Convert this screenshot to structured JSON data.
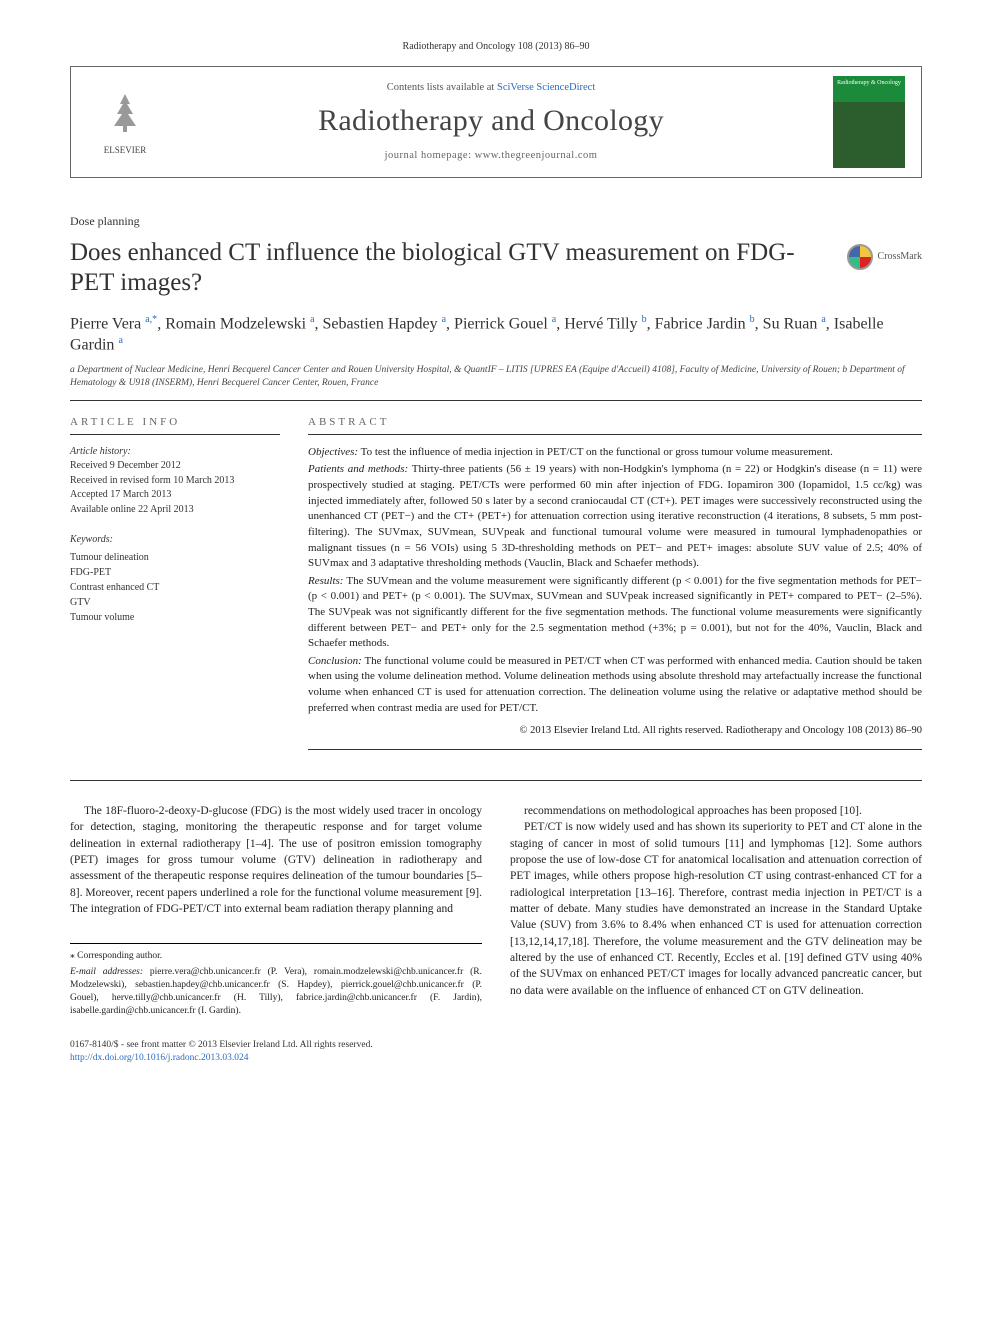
{
  "header": {
    "citation": "Radiotherapy and Oncology 108 (2013) 86–90"
  },
  "banner": {
    "contents_line_pre": "Contents lists available at ",
    "contents_link": "SciVerse ScienceDirect",
    "journal_name": "Radiotherapy and Oncology",
    "homepage_pre": "journal homepage: ",
    "homepage_url": "www.thegreenjournal.com",
    "elsevier_label": "ELSEVIER",
    "cover_label": "Radiotherapy & Oncology"
  },
  "article": {
    "type": "Dose planning",
    "title": "Does enhanced CT influence the biological GTV measurement on FDG-PET images?",
    "crossmark": "CrossMark",
    "authors_html": "Pierre Vera <sup>a,*</sup>, Romain Modzelewski <sup>a</sup>, Sebastien Hapdey <sup>a</sup>, Pierrick Gouel <sup>a</sup>, Hervé Tilly <sup>b</sup>, Fabrice Jardin <sup>b</sup>, Su Ruan <sup>a</sup>, Isabelle Gardin <sup>a</sup>",
    "affiliations": "a Department of Nuclear Medicine, Henri Becquerel Cancer Center and Rouen University Hospital, & QuantIF – LITIS [UPRES EA (Equipe d'Accueil) 4108], Faculty of Medicine, University of Rouen; b Department of Hematology & U918 (INSERM), Henri Becquerel Cancer Center, Rouen, France"
  },
  "info": {
    "heading": "article info",
    "history_label": "Article history:",
    "history": [
      "Received 9 December 2012",
      "Received in revised form 10 March 2013",
      "Accepted 17 March 2013",
      "Available online 22 April 2013"
    ],
    "keywords_label": "Keywords:",
    "keywords": [
      "Tumour delineation",
      "FDG-PET",
      "Contrast enhanced CT",
      "GTV",
      "Tumour volume"
    ]
  },
  "abstract": {
    "heading": "abstract",
    "objectives_label": "Objectives:",
    "objectives": "To test the influence of media injection in PET/CT on the functional or gross tumour volume measurement.",
    "patients_label": "Patients and methods:",
    "patients": "Thirty-three patients (56 ± 19 years) with non-Hodgkin's lymphoma (n = 22) or Hodgkin's disease (n = 11) were prospectively studied at staging. PET/CTs were performed 60 min after injection of FDG. Iopamiron 300 (Iopamidol, 1.5 cc/kg) was injected immediately after, followed 50 s later by a second craniocaudal CT (CT+). PET images were successively reconstructed using the unenhanced CT (PET−) and the CT+ (PET+) for attenuation correction using iterative reconstruction (4 iterations, 8 subsets, 5 mm post-filtering). The SUVmax, SUVmean, SUVpeak and functional tumoural volume were measured in tumoural lymphadenopathies or malignant tissues (n = 56 VOIs) using 5 3D-thresholding methods on PET− and PET+ images: absolute SUV value of 2.5; 40% of SUVmax and 3 adaptative thresholding methods (Vauclin, Black and Schaefer methods).",
    "results_label": "Results:",
    "results": "The SUVmean and the volume measurement were significantly different (p < 0.001) for the five segmentation methods for PET− (p < 0.001) and PET+ (p < 0.001). The SUVmax, SUVmean and SUVpeak increased significantly in PET+ compared to PET− (2–5%). The SUVpeak was not significantly different for the five segmentation methods. The functional volume measurements were significantly different between PET− and PET+ only for the 2.5 segmentation method (+3%; p = 0.001), but not for the 40%, Vauclin, Black and Schaefer methods.",
    "conclusion_label": "Conclusion:",
    "conclusion": "The functional volume could be measured in PET/CT when CT was performed with enhanced media. Caution should be taken when using the volume delineation method. Volume delineation methods using absolute threshold may artefactually increase the functional volume when enhanced CT is used for attenuation correction. The delineation volume using the relative or adaptative method should be preferred when contrast media are used for PET/CT.",
    "copyright": "© 2013 Elsevier Ireland Ltd. All rights reserved. Radiotherapy and Oncology 108 (2013) 86–90"
  },
  "body": {
    "p1": "The 18F-fluoro-2-deoxy-D-glucose (FDG) is the most widely used tracer in oncology for detection, staging, monitoring the therapeutic response and for target volume delineation in external radiotherapy [1–4]. The use of positron emission tomography (PET) images for gross tumour volume (GTV) delineation in radiotherapy and assessment of the therapeutic response requires delineation of the tumour boundaries [5–8]. Moreover, recent papers underlined a role for the functional volume measurement [9]. The integration of FDG-PET/CT into external beam radiation therapy planning and",
    "p2": "recommendations on methodological approaches has been proposed [10].",
    "p3": "PET/CT is now widely used and has shown its superiority to PET and CT alone in the staging of cancer in most of solid tumours [11] and lymphomas [12]. Some authors propose the use of low-dose CT for anatomical localisation and attenuation correction of PET images, while others propose high-resolution CT using contrast-enhanced CT for a radiological interpretation [13–16]. Therefore, contrast media injection in PET/CT is a matter of debate. Many studies have demonstrated an increase in the Standard Uptake Value (SUV) from 3.6% to 8.4% when enhanced CT is used for attenuation correction [13,12,14,17,18]. Therefore, the volume measurement and the GTV delineation may be altered by the use of enhanced CT. Recently, Eccles et al. [19] defined GTV using 40% of the SUVmax on enhanced PET/CT images for locally advanced pancreatic cancer, but no data were available on the influence of enhanced CT on GTV delineation."
  },
  "footnotes": {
    "corr": "⁎ Corresponding author.",
    "emails_label": "E-mail addresses:",
    "emails": "pierre.vera@chb.unicancer.fr (P. Vera), romain.modzelewski@chb.unicancer.fr (R. Modzelewski), sebastien.hapdey@chb.unicancer.fr (S. Hapdey), pierrick.gouel@chb.unicancer.fr (P. Gouel), herve.tilly@chb.unicancer.fr (H. Tilly), fabrice.jardin@chb.unicancer.fr (F. Jardin), isabelle.gardin@chb.unicancer.fr (I. Gardin)."
  },
  "footer": {
    "issn_line": "0167-8140/$ - see front matter © 2013 Elsevier Ireland Ltd. All rights reserved.",
    "doi": "http://dx.doi.org/10.1016/j.radonc.2013.03.024"
  },
  "colors": {
    "link": "#2a6bbf",
    "text": "#222222",
    "muted": "#666666",
    "rule": "#333333"
  }
}
